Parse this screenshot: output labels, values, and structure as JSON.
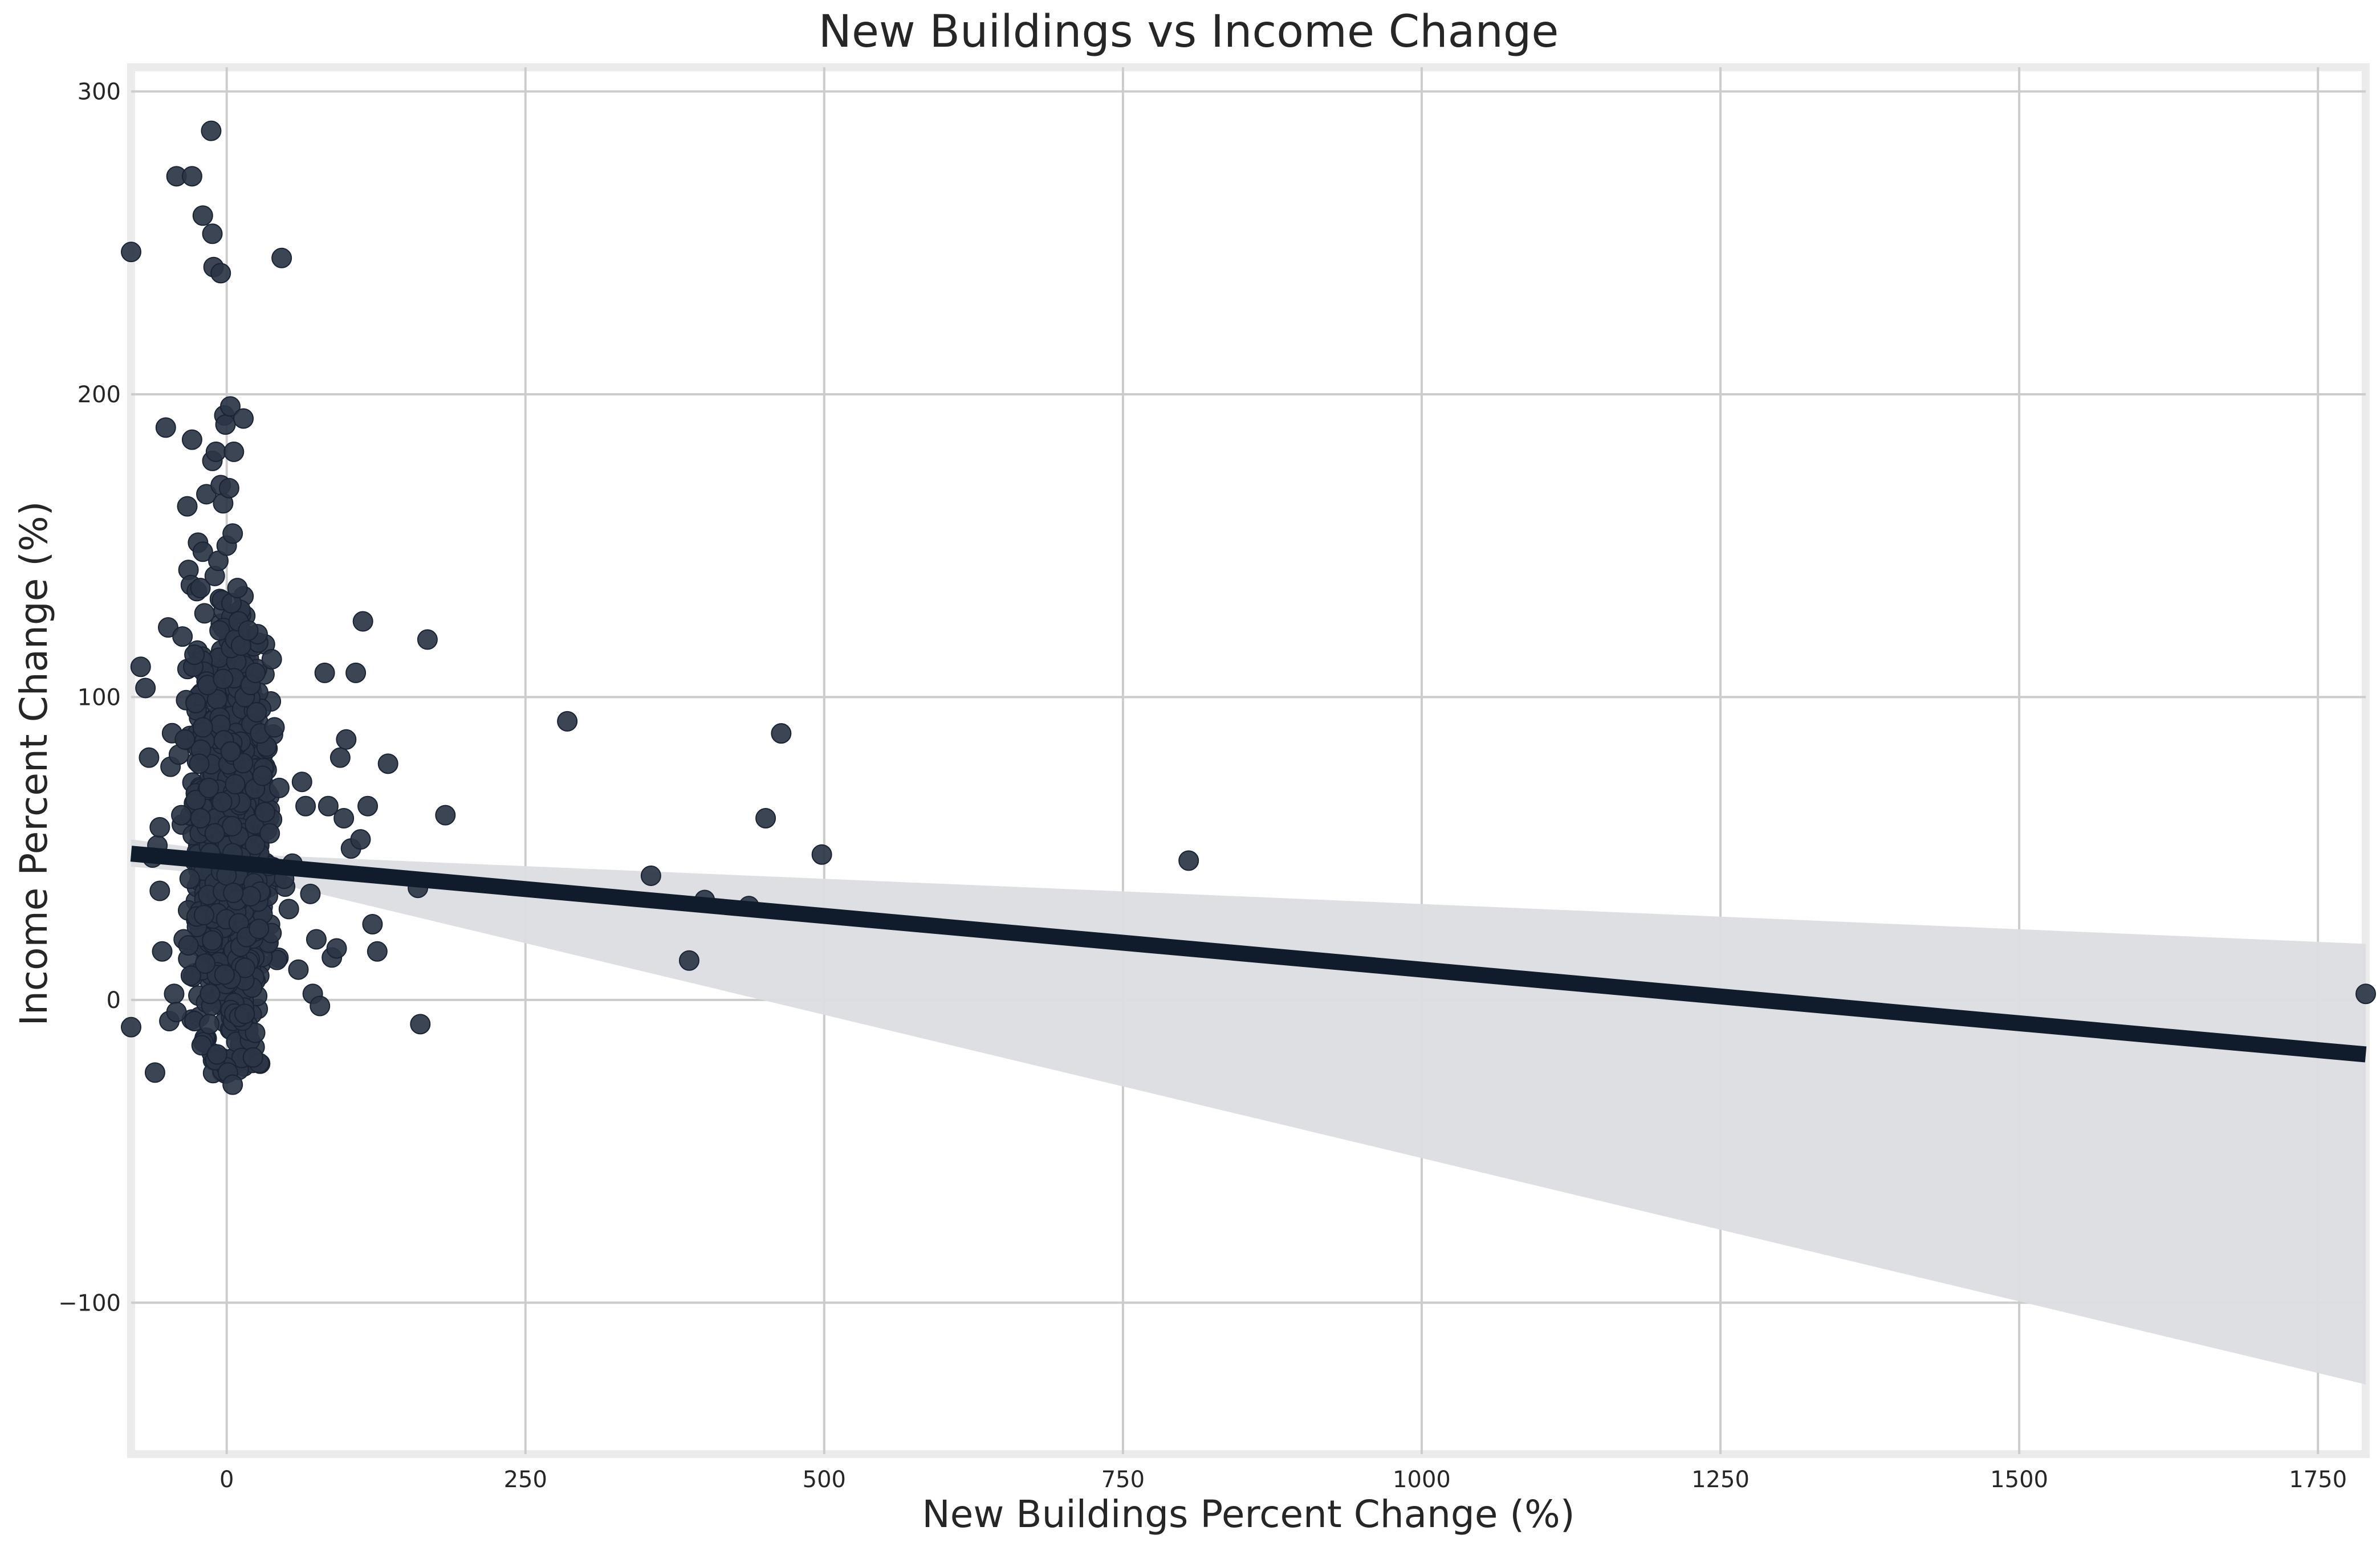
{
  "chart_data": {
    "type": "scatter",
    "title": "New Buildings vs Income Change",
    "xlabel": "New Buildings Percent Change (%)",
    "ylabel": "Income Percent Change (%)",
    "xlim": [
      -80,
      1790
    ],
    "ylim": [
      -150,
      308
    ],
    "x_ticks": [
      0,
      250,
      500,
      750,
      1000,
      1250,
      1500,
      1750
    ],
    "y_ticks": [
      -100,
      0,
      100,
      200,
      300
    ],
    "grid": true,
    "legend": "none",
    "colors": {
      "points": "#2b3545",
      "point_edge": "#1a2333",
      "regression_line": "#101c2c",
      "confidence_band": "#dcdde1",
      "grid": "#cccccc",
      "frame": "#ebebeb"
    },
    "regression": {
      "x": [
        -80,
        1790
      ],
      "y": [
        48.3,
        -18.0
      ],
      "ci_lower": [
        44.0,
        -127.0
      ],
      "ci_upper": [
        53.0,
        18.5
      ],
      "ci_pivot": {
        "x": 20,
        "lower": 40.5,
        "upper": 48.0
      }
    },
    "series": [
      {
        "points": [
          [
            -80,
            247
          ],
          [
            -80,
            -9
          ],
          [
            -72,
            110
          ],
          [
            -68,
            103
          ],
          [
            -65,
            80
          ],
          [
            -62,
            47
          ],
          [
            -60,
            -24
          ],
          [
            -58,
            51
          ],
          [
            -56,
            57
          ],
          [
            -56,
            36
          ],
          [
            -54,
            16
          ],
          [
            -51,
            189
          ],
          [
            -49,
            123
          ],
          [
            -48,
            -7
          ],
          [
            -47,
            77
          ],
          [
            -44,
            2
          ],
          [
            -42,
            272
          ],
          [
            -42,
            -4
          ],
          [
            -40,
            81
          ],
          [
            -38,
            61
          ],
          [
            -37,
            120
          ],
          [
            -36,
            20
          ],
          [
            -35,
            86
          ],
          [
            -34,
            99
          ],
          [
            -33,
            163
          ],
          [
            -32,
            142
          ],
          [
            -32,
            18
          ],
          [
            -31,
            40
          ],
          [
            -30,
            8
          ],
          [
            -30,
            137
          ],
          [
            -29,
            272
          ],
          [
            -29,
            185
          ],
          [
            -28,
            110
          ],
          [
            -27,
            114
          ],
          [
            -26,
            98
          ],
          [
            -26,
            66
          ],
          [
            -25,
            135
          ],
          [
            -24,
            151
          ],
          [
            -23,
            78
          ],
          [
            -22,
            136
          ],
          [
            -22,
            60
          ],
          [
            -21,
            -15
          ],
          [
            -20,
            259
          ],
          [
            -20,
            148
          ],
          [
            -20,
            90
          ],
          [
            -19,
            28
          ],
          [
            -18,
            12
          ],
          [
            -17,
            167
          ],
          [
            -16,
            104
          ],
          [
            -15,
            70
          ],
          [
            -14,
            2
          ],
          [
            -13,
            287
          ],
          [
            -12,
            253
          ],
          [
            -12,
            178
          ],
          [
            -11,
            242
          ],
          [
            -10,
            140
          ],
          [
            -10,
            55
          ],
          [
            -9,
            181
          ],
          [
            -8,
            -18
          ],
          [
            -7,
            145
          ],
          [
            -6,
            122
          ],
          [
            -5,
            240
          ],
          [
            -5,
            170
          ],
          [
            -4,
            132
          ],
          [
            -3,
            164
          ],
          [
            -3,
            106
          ],
          [
            -2,
            193
          ],
          [
            -1,
            190
          ],
          [
            0,
            150
          ],
          [
            1,
            -24
          ],
          [
            2,
            169
          ],
          [
            3,
            196
          ],
          [
            4,
            131
          ],
          [
            5,
            -28
          ],
          [
            5,
            154
          ],
          [
            6,
            181
          ],
          [
            7,
            119
          ],
          [
            9,
            136
          ],
          [
            10,
            125
          ],
          [
            12,
            117
          ],
          [
            14,
            192
          ],
          [
            15,
            100
          ],
          [
            18,
            122
          ],
          [
            20,
            104
          ],
          [
            22,
            -19
          ],
          [
            24,
            108
          ],
          [
            25,
            95
          ],
          [
            28,
            88
          ],
          [
            30,
            74
          ],
          [
            32,
            62
          ],
          [
            36,
            55
          ],
          [
            40,
            90
          ],
          [
            44,
            70
          ],
          [
            46,
            245
          ],
          [
            48,
            40
          ],
          [
            52,
            30
          ],
          [
            55,
            45
          ],
          [
            60,
            10
          ],
          [
            63,
            72
          ],
          [
            66,
            64
          ],
          [
            70,
            35
          ],
          [
            72,
            2
          ],
          [
            75,
            20
          ],
          [
            78,
            -2
          ],
          [
            82,
            108
          ],
          [
            85,
            64
          ],
          [
            88,
            14
          ],
          [
            92,
            17
          ],
          [
            95,
            80
          ],
          [
            98,
            60
          ],
          [
            100,
            86
          ],
          [
            104,
            50
          ],
          [
            108,
            108
          ],
          [
            112,
            53
          ],
          [
            114,
            125
          ],
          [
            118,
            64
          ],
          [
            122,
            25
          ],
          [
            126,
            16
          ],
          [
            135,
            78
          ],
          [
            160,
            37
          ],
          [
            162,
            -8
          ],
          [
            168,
            119
          ],
          [
            183,
            61
          ],
          [
            285,
            92
          ],
          [
            355,
            41
          ],
          [
            387,
            13
          ],
          [
            400,
            33
          ],
          [
            437,
            31
          ],
          [
            451,
            60
          ],
          [
            464,
            88
          ],
          [
            498,
            48
          ],
          [
            805,
            46
          ],
          [
            1790,
            2
          ]
        ],
        "cluster": {
          "x_center": 3,
          "x_spread": 14,
          "y_center": 50,
          "y_spread": 33,
          "count": 1100
        }
      }
    ]
  }
}
